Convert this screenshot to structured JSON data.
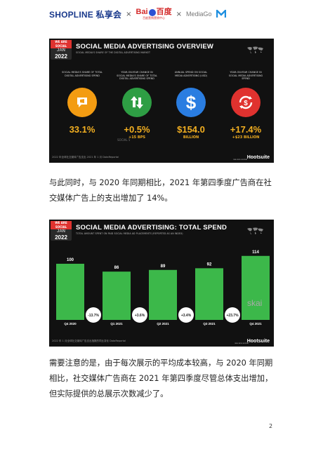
{
  "header": {
    "shopline": "SHOPLINE",
    "shopline_cn": "私享会",
    "baidu": "Bai",
    "baidu_cn": "百度",
    "baidu_sub": "百度营销营销中心",
    "mediago": "MediaGo",
    "x1": "×",
    "x2": "×"
  },
  "slide1": {
    "badge": {
      "tag": "WE ARE SOCIAL",
      "month": "JAN",
      "year": "2022"
    },
    "title": "SOCIAL MEDIA ADVERTISING OVERVIEW",
    "subtitle": "SOCIAL MEDIA'S SHARE OF THE DIGITAL ADVERTISING MARKET",
    "stats": [
      {
        "label": "SOCIAL MEDIA'S SHARE OF TOTAL DIGITAL ADVERTISING SPEND",
        "value": "33.1%",
        "sub": "",
        "color": "#f39c12"
      },
      {
        "label": "YEAR-ON-YEAR CHANGE IN SOCIAL MEDIA'S SHARE OF TOTAL DIGITAL ADVERTISING SPEND",
        "value": "+0.5%",
        "sub": "+15 BPS",
        "color": "#2e9e44"
      },
      {
        "label": "ANNUAL SPEND ON SOCIAL MEDIA ADVERTISING (USD)",
        "value": "$154.0",
        "sub": "BILLION",
        "color": "#2a7de1"
      },
      {
        "label": "YEAR-ON-YEAR CHANGE IN SOCIAL MEDIA ADVERTISING SPEND",
        "value": "+17.4%",
        "sub": "+$23 BILLION",
        "color": "#e0322f"
      }
    ],
    "footer": "2022 年全球社交媒体广告支出 2021 年 1 月 DataReportal",
    "brand": "Hootsuite",
    "was": "we are social",
    "mark": "SOCIAL 5"
  },
  "para1": "与此同时，与 2020 年同期相比，2021 年第四季度广告商在社交媒体广告上的支出增加了 14%。",
  "slide2": {
    "badge": {
      "tag": "WE ARE SOCIAL",
      "month": "JAN",
      "year": "2022"
    },
    "title": "SOCIAL MEDIA ADVERTISING: TOTAL SPEND",
    "subtitle": "TOTAL AMOUNT SPENT ON PAID SOCIAL MEDIA AD PLACEMENTS (REPORTED AS AN INDEX)",
    "footer": "2022 年 1 月全球社交媒体广告支出指数的同比变化 DataReportal",
    "brand": "Hootsuite",
    "skai": "skai",
    "was": "we are social"
  },
  "chart_data": {
    "type": "bar",
    "title": "SOCIAL MEDIA ADVERTISING: TOTAL SPEND",
    "categories": [
      "Q4 2020",
      "Q1 2021",
      "Q2 2021",
      "Q3 2021",
      "Q4 2021"
    ],
    "values": [
      100,
      86,
      89,
      92,
      114
    ],
    "changes": [
      "-13.7%",
      "+3.6%",
      "+3.4%",
      "+23.7%"
    ],
    "bar_color": "#3cb84a",
    "ylim": [
      0,
      120
    ]
  },
  "para2": "需要注意的是，由于每次展示的平均成本较高，与 2020 年同期相比，社交媒体广告商在 2021 年第四季度尽管总体支出增加，但实际提供的总展示次数减少了。",
  "page_number": "2"
}
